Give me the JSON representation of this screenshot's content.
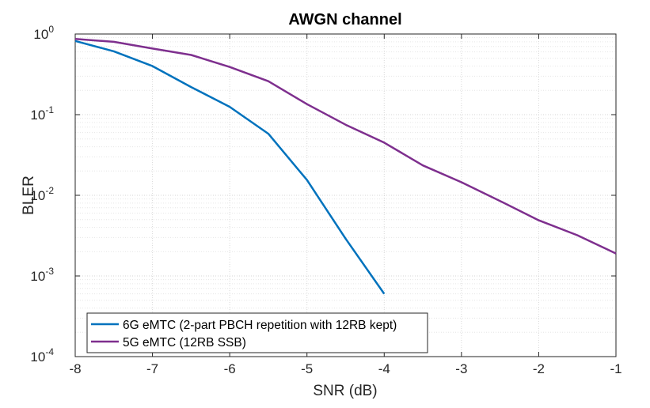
{
  "chart_data": {
    "type": "line",
    "title": "AWGN channel",
    "xlabel": "SNR (dB)",
    "ylabel": "BLER",
    "yscale": "log",
    "xlim": [
      -8,
      -1
    ],
    "ylim": [
      0.0001,
      1
    ],
    "x_ticks": [
      "-8",
      "-7",
      "-6",
      "-5",
      "-4",
      "-3",
      "-2",
      "-1"
    ],
    "y_ticks": [
      {
        "base": "10",
        "exp": "0",
        "value": 1
      },
      {
        "base": "10",
        "exp": "-1",
        "value": 0.1
      },
      {
        "base": "10",
        "exp": "-2",
        "value": 0.01
      },
      {
        "base": "10",
        "exp": "-3",
        "value": 0.001
      },
      {
        "base": "10",
        "exp": "-4",
        "value": 0.0001
      }
    ],
    "grid": true,
    "legend_position": "bottom-left",
    "series": [
      {
        "name": "6G eMTC (2-part PBCH repetition with 12RB kept)",
        "color": "#0072BD",
        "x": [
          -8,
          -7.5,
          -7,
          -6.5,
          -6,
          -5.5,
          -5,
          -4.5,
          -4
        ],
        "y": [
          0.82,
          0.61,
          0.4,
          0.22,
          0.125,
          0.058,
          0.0155,
          0.0029,
          0.0006
        ]
      },
      {
        "name": "5G eMTC (12RB SSB)",
        "color": "#7E2F8E",
        "x": [
          -8,
          -7.5,
          -7,
          -6.5,
          -6,
          -5.5,
          -5,
          -4.5,
          -4,
          -3.5,
          -3,
          -2.5,
          -2,
          -1.5,
          -1
        ],
        "y": [
          0.87,
          0.8,
          0.66,
          0.55,
          0.39,
          0.26,
          0.135,
          0.075,
          0.045,
          0.0235,
          0.0145,
          0.0085,
          0.0049,
          0.0032,
          0.0019
        ]
      }
    ]
  }
}
